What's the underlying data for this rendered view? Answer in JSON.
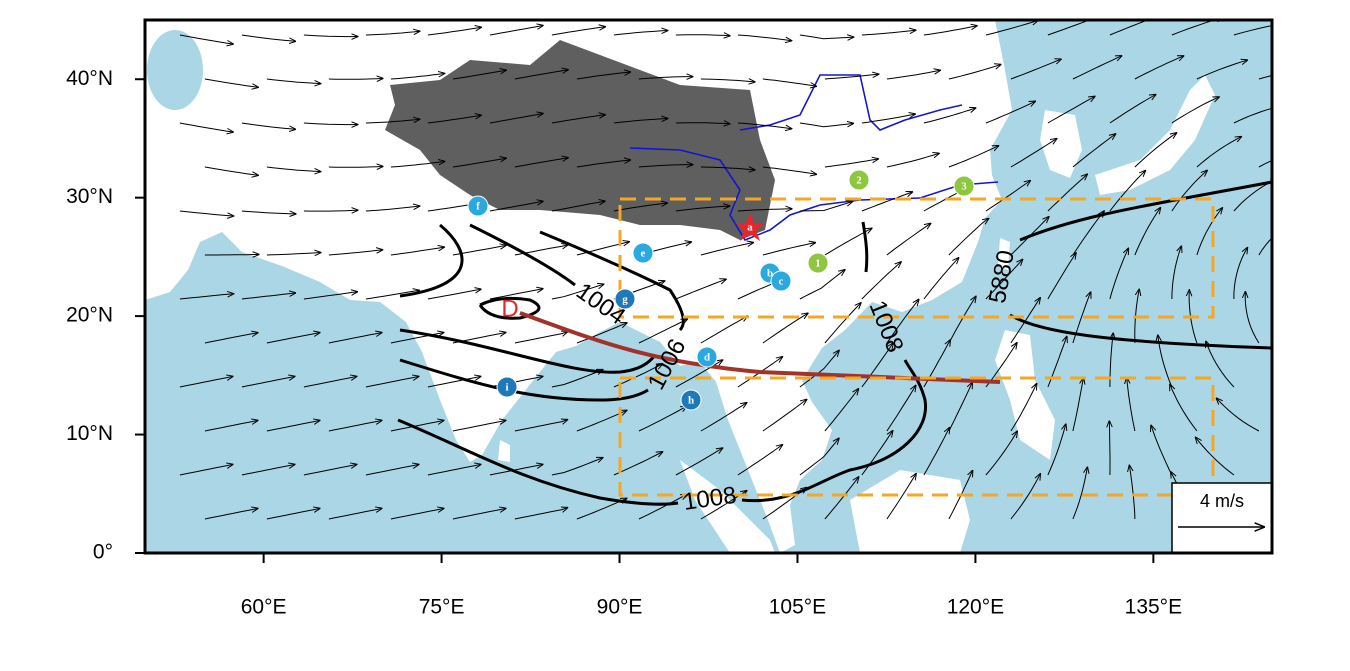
{
  "axes": {
    "xlim": [
      50,
      145
    ],
    "ylim": [
      0,
      45
    ],
    "xticks": [
      {
        "value": 60,
        "label": "60°E"
      },
      {
        "value": 75,
        "label": "75°E"
      },
      {
        "value": 90,
        "label": "90°E"
      },
      {
        "value": 105,
        "label": "105°E"
      },
      {
        "value": 120,
        "label": "120°E"
      },
      {
        "value": 135,
        "label": "135°E"
      }
    ],
    "yticks": [
      {
        "value": 0,
        "label": "0°"
      },
      {
        "value": 10,
        "label": "10°N"
      },
      {
        "value": 20,
        "label": "20°N"
      },
      {
        "value": 30,
        "label": "30°N"
      },
      {
        "value": 40,
        "label": "40°N"
      }
    ]
  },
  "contour_labels": [
    1004,
    1006,
    1008,
    1008,
    5880
  ],
  "low_label": "D",
  "markers": [
    "a",
    "b",
    "c",
    "d",
    "e",
    "f",
    "g",
    "h",
    "i",
    "1",
    "2",
    "3"
  ],
  "vector_reference": "4 m/s"
}
